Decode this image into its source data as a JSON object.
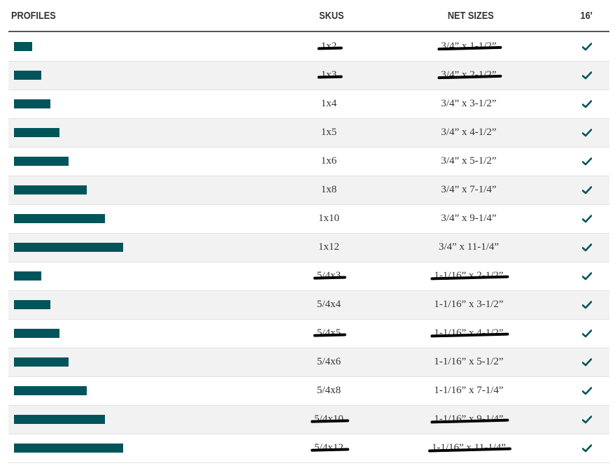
{
  "table": {
    "header": [
      "PROFILES",
      "SKUS",
      "NET SIZES",
      "16'"
    ],
    "rows": [
      {
        "profile": 2,
        "sku": "1x2",
        "net_size": "3/4” x 1-1/2”",
        "struck": true
      },
      {
        "profile": 3,
        "sku": "1x3",
        "net_size": "3/4” x 2-1/2”",
        "struck": true
      },
      {
        "profile": 4,
        "sku": "1x4",
        "net_size": "3/4” x 3-1/2”",
        "struck": false
      },
      {
        "profile": 5,
        "sku": "1x5",
        "net_size": "3/4” x 4-1/2”",
        "struck": false
      },
      {
        "profile": 6,
        "sku": "1x6",
        "net_size": "3/4” x 5-1/2”",
        "struck": false
      },
      {
        "profile": 8,
        "sku": "1x8",
        "net_size": "3/4” x 7-1/4”",
        "struck": false
      },
      {
        "profile": 10,
        "sku": "1x10",
        "net_size": "3/4” x 9-1/4”",
        "struck": false
      },
      {
        "profile": 12,
        "sku": "1x12",
        "net_size": "3/4” x 11-1/4”",
        "struck": false
      },
      {
        "profile": 3,
        "sku": "5/4x3",
        "net_size": "1-1/16” x 2-1/2”",
        "struck": true
      },
      {
        "profile": 4,
        "sku": "5/4x4",
        "net_size": "1-1/16” x 3-1/2”",
        "struck": false
      },
      {
        "profile": 5,
        "sku": "5/4x5",
        "net_size": "1-1/16” x 4-1/2”",
        "struck": true
      },
      {
        "profile": 6,
        "sku": "5/4x6",
        "net_size": "1-1/16” x 5-1/2”",
        "struck": false
      },
      {
        "profile": 8,
        "sku": "5/4x8",
        "net_size": "1-1/16” x 7-1/4”",
        "struck": false
      },
      {
        "profile": 10,
        "sku": "5/4x10",
        "net_size": "1-1/16” x 9-1/4”",
        "struck": true
      },
      {
        "profile": 12,
        "sku": "5/4x12",
        "net_size": "1-1/16” x 11-1/4”",
        "struck": true
      }
    ]
  }
}
